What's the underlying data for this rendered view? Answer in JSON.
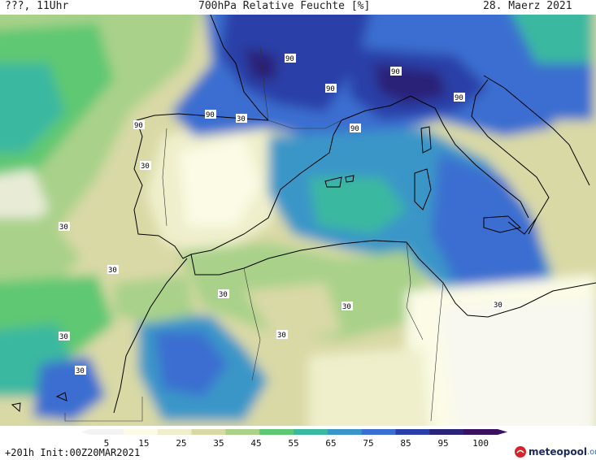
{
  "header": {
    "left": "???, 11Uhr",
    "title": "700hPa Relative Feuchte [%]",
    "date": "28. Maerz 2021"
  },
  "footer": {
    "run": "+201h Init:00Z20MAR2021",
    "logo_name": "meteopool",
    "logo_domain": ".org"
  },
  "legend": {
    "ticks": [
      "5",
      "15",
      "25",
      "35",
      "45",
      "55",
      "65",
      "75",
      "85",
      "95",
      "100"
    ],
    "colors": [
      "#f3f3f3",
      "#fbfbe6",
      "#efefcc",
      "#d9d9a6",
      "#a9d18a",
      "#5fc872",
      "#3ab8a0",
      "#3a96c8",
      "#3a6ed0",
      "#2a3fa8",
      "#2a2478",
      "#3b0f60"
    ]
  },
  "contour_labels": [
    "90",
    "90",
    "90",
    "90",
    "90",
    "90",
    "90",
    "30",
    "30",
    "30",
    "30",
    "30",
    "30",
    "30",
    "30",
    "30",
    "30"
  ]
}
